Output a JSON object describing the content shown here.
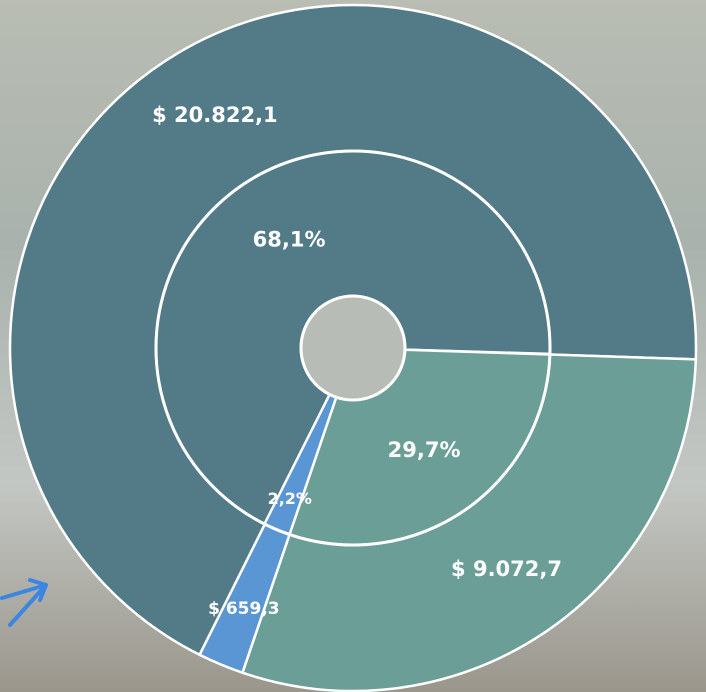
{
  "chart_data": {
    "type": "pie",
    "values": [
      20822.1,
      9072.7,
      659.3
    ],
    "value_labels": [
      "$ 20.822,1",
      "$ 9.072,7",
      "$ 659,3"
    ],
    "percent_values": [
      68.1,
      29.7,
      2.2
    ],
    "percent_labels": [
      "68,1%",
      "29,7%",
      "2,2%"
    ],
    "colors": [
      "#527b87",
      "#6a9e97",
      "#5b96d4"
    ]
  }
}
